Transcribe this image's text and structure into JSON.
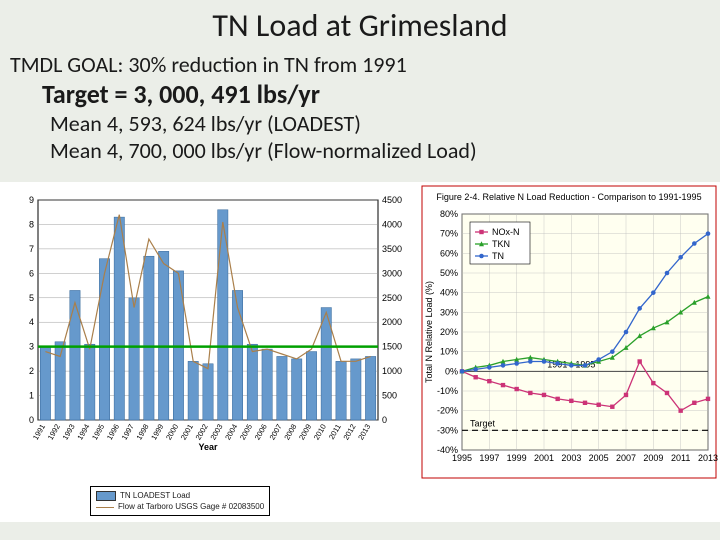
{
  "title": "TN Load at Grimesland",
  "subtitle": "TMDL GOAL: 30% reduction in TN from 1991",
  "target_line": "Target = 3, 000, 491 lbs/yr",
  "mean1": "Mean 4, 593, 624 lbs/yr  (LOADEST)",
  "mean2": "Mean 4, 700, 000 lbs/yr  (Flow-normalized Load)",
  "background_color": "#ebeee8",
  "left_chart": {
    "type": "bar+line",
    "years": [
      "1991",
      "1992",
      "1993",
      "1994",
      "1995",
      "1996",
      "1997",
      "1998",
      "1999",
      "2000",
      "2001",
      "2002",
      "2003",
      "2004",
      "2005",
      "2006",
      "2007",
      "2008",
      "2009",
      "2010",
      "2011",
      "2012",
      "2013"
    ],
    "bars": [
      3.0,
      3.2,
      5.3,
      3.1,
      6.6,
      8.3,
      5.0,
      6.7,
      6.9,
      6.1,
      2.4,
      2.3,
      8.6,
      5.3,
      3.1,
      2.9,
      2.6,
      2.5,
      2.8,
      4.6,
      2.4,
      2.5,
      2.6
    ],
    "line": [
      1400,
      1300,
      2400,
      1450,
      3000,
      4200,
      2300,
      3700,
      3200,
      3000,
      1200,
      1050,
      4050,
      2300,
      1400,
      1450,
      1350,
      1250,
      1450,
      2200,
      1200,
      1200,
      1300
    ],
    "bar_color": "#6699cc",
    "line_color": "#aa7f4a",
    "target_line_value": 3.0,
    "target_line_color": "#00a000",
    "left_ylim": [
      0,
      9
    ],
    "left_ystep": 1,
    "right_ylim": [
      0,
      4500
    ],
    "right_ystep": 500,
    "xlabel": "Year",
    "grid_color": "#888888",
    "legend1": "TN LOADEST Load",
    "legend2": "Flow at Tarboro USGS Gage # 02083500"
  },
  "right_chart": {
    "type": "line",
    "title": "Figure 2-4.  Relative N Load Reduction - Comparison to 1991-1995",
    "ylabel": "Total N Relative Load (%)",
    "xlabel": "",
    "xlim": [
      1995,
      2013
    ],
    "xstep": 2,
    "ylim": [
      -40,
      80
    ],
    "ystep": 10,
    "target_y": -30,
    "target_label": "Target",
    "ref_label": "1991 - 1995",
    "series": [
      {
        "name": "NOx-N",
        "color": "#cc3377",
        "marker": "square",
        "x": [
          1995,
          1996,
          1997,
          1998,
          1999,
          2000,
          2001,
          2002,
          2003,
          2004,
          2005,
          2006,
          2007,
          2008,
          2009,
          2010,
          2011,
          2012,
          2013
        ],
        "y": [
          0,
          -3,
          -5,
          -7,
          -9,
          -11,
          -12,
          -14,
          -15,
          -16,
          -17,
          -18,
          -12,
          5,
          -6,
          -11,
          -20,
          -16,
          -14
        ]
      },
      {
        "name": "TKN",
        "color": "#2aa02a",
        "marker": "triangle",
        "x": [
          1995,
          1996,
          1997,
          1998,
          1999,
          2000,
          2001,
          2002,
          2003,
          2004,
          2005,
          2006,
          2007,
          2008,
          2009,
          2010,
          2011,
          2012,
          2013
        ],
        "y": [
          0,
          2,
          3,
          5,
          6,
          7,
          6,
          5,
          4,
          3,
          5,
          7,
          12,
          18,
          22,
          25,
          30,
          35,
          38
        ]
      },
      {
        "name": "TN",
        "color": "#3366cc",
        "marker": "circle",
        "x": [
          1995,
          1996,
          1997,
          1998,
          1999,
          2000,
          2001,
          2002,
          2003,
          2004,
          2005,
          2006,
          2007,
          2008,
          2009,
          2010,
          2011,
          2012,
          2013
        ],
        "y": [
          0,
          1,
          2,
          3,
          4,
          5,
          5,
          4,
          3,
          3,
          6,
          10,
          20,
          32,
          40,
          50,
          58,
          65,
          70
        ]
      }
    ],
    "grid_color": "#bbbbbb",
    "plot_bg": "#fffff0",
    "border_color": "#c00000"
  }
}
